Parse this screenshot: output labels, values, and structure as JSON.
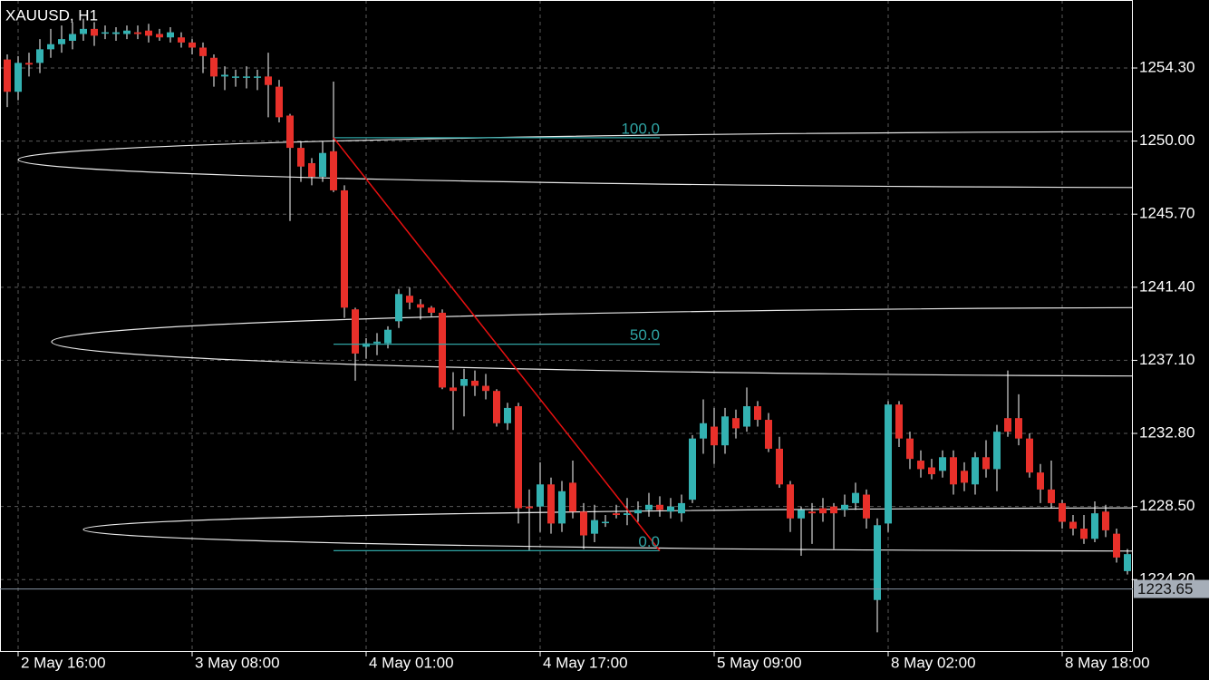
{
  "chart_data": {
    "type": "candlestick",
    "title": "XAUUSD, H1",
    "categories": [
      null,
      "2 May 16:00",
      null,
      null,
      null,
      null,
      null,
      null,
      null,
      null,
      null,
      null,
      null,
      null,
      null,
      null,
      null,
      "3 May 08:00",
      null,
      null,
      null,
      null,
      null,
      null,
      null,
      null,
      null,
      null,
      null,
      null,
      null,
      null,
      null,
      "4 May 01:00",
      null,
      null,
      null,
      null,
      null,
      null,
      null,
      null,
      null,
      null,
      null,
      null,
      null,
      null,
      null,
      "4 May 17:00",
      null,
      null,
      null,
      null,
      null,
      null,
      null,
      null,
      null,
      null,
      null,
      null,
      null,
      null,
      null,
      "5 May 09:00",
      null,
      null,
      null,
      null,
      null,
      null,
      null,
      null,
      null,
      null,
      null,
      null,
      null,
      null,
      null,
      "8 May 02:00",
      null,
      null,
      null,
      null,
      null,
      null,
      null,
      null,
      null,
      null,
      null,
      null,
      null,
      null,
      null,
      "8 May 18:00",
      null,
      null,
      null,
      null,
      null,
      null
    ],
    "open": [
      1254.8,
      1252.9,
      1254.6,
      1254.6,
      1255.4,
      1255.7,
      1255.9,
      1256.3,
      1256.6,
      1256.4,
      1256.3,
      1256.3,
      1256.4,
      1256.5,
      1256.3,
      1256.1,
      1256.1,
      1255.8,
      1255.5,
      1254.9,
      1253.8,
      1253.8,
      1253.8,
      1253.8,
      1253.8,
      1253.2,
      1251.5,
      1249.6,
      1248.7,
      1247.9,
      1249.4,
      1247.1,
      1240.1,
      1237.9,
      1238.1,
      1238.1,
      1239.4,
      1240.9,
      1240.4,
      1240.2,
      1239.9,
      1235.5,
      1235.6,
      1235.9,
      1235.6,
      1235.3,
      1233.4,
      1234.4,
      1228.5,
      1228.5,
      1229.8,
      1227.5,
      1229.9,
      1228.2,
      1226.9,
      1227.6,
      1228.1,
      1228.0,
      1228.1,
      1228.3,
      1228.6,
      1228.2,
      1228.1,
      1228.9,
      1232.5,
      1233.2,
      1232.1,
      1233.7,
      1233.2,
      1234.4,
      1233.6,
      1231.9,
      1229.8,
      1227.8,
      1228.2,
      1228.4,
      1228.5,
      1228.3,
      1228.7,
      1229.2,
      1223.0,
      1227.5,
      1234.5,
      1232.5,
      1231.2,
      1230.8,
      1230.6,
      1231.4,
      1230.6,
      1229.8,
      1231.4,
      1230.7,
      1233.7,
      1233.7,
      1232.5,
      1230.5,
      1229.5,
      1228.7,
      1227.6,
      1227.2,
      1226.6,
      1228.2,
      1226.9,
      1224.7
    ],
    "high": [
      1255.1,
      1255.0,
      1255.2,
      1256.0,
      1256.6,
      1256.8,
      1257.0,
      1257.2,
      1257.0,
      1256.8,
      1256.7,
      1256.8,
      1256.8,
      1256.9,
      1256.6,
      1256.7,
      1256.4,
      1256.0,
      1255.8,
      1255.1,
      1254.4,
      1254.2,
      1254.4,
      1254.2,
      1255.2,
      1253.6,
      1251.6,
      1250.0,
      1249.0,
      1250.0,
      1253.5,
      1247.4,
      1240.2,
      1238.4,
      1238.7,
      1239.1,
      1241.3,
      1241.4,
      1240.7,
      1240.3,
      1240.1,
      1236.4,
      1236.6,
      1236.5,
      1236.3,
      1235.4,
      1234.6,
      1234.6,
      1229.5,
      1231.1,
      1230.2,
      1230.0,
      1231.2,
      1228.7,
      1228.6,
      1228.0,
      1228.6,
      1229.0,
      1228.8,
      1229.3,
      1229.1,
      1229.0,
      1229.2,
      1232.7,
      1234.8,
      1234.3,
      1234.3,
      1234.2,
      1235.5,
      1234.7,
      1234.0,
      1232.6,
      1230.0,
      1228.5,
      1228.7,
      1229.0,
      1228.7,
      1229.2,
      1229.9,
      1229.5,
      1227.8,
      1234.7,
      1234.7,
      1232.9,
      1231.8,
      1231.3,
      1231.8,
      1231.8,
      1231.1,
      1231.7,
      1232.4,
      1233.3,
      1236.5,
      1235.1,
      1232.8,
      1231.0,
      1231.2,
      1228.9,
      1228.0,
      1228.0,
      1228.8,
      1228.6,
      1227.2,
      1226.0
    ],
    "low": [
      1252.0,
      1252.4,
      1253.8,
      1254.0,
      1254.9,
      1255.2,
      1255.4,
      1255.9,
      1255.6,
      1256.0,
      1255.9,
      1256.0,
      1256.0,
      1255.8,
      1255.9,
      1255.8,
      1255.5,
      1255.1,
      1254.0,
      1253.2,
      1253.0,
      1253.2,
      1253.1,
      1253.0,
      1251.4,
      1251.1,
      1245.3,
      1247.6,
      1247.4,
      1247.6,
      1247.0,
      1239.6,
      1235.9,
      1237.2,
      1237.4,
      1237.8,
      1239.0,
      1240.1,
      1239.5,
      1239.7,
      1235.4,
      1233.0,
      1233.8,
      1235.0,
      1234.8,
      1233.2,
      1233.0,
      1227.5,
      1225.9,
      1227.0,
      1226.9,
      1227.0,
      1227.8,
      1226.0,
      1226.4,
      1227.3,
      1227.8,
      1227.4,
      1227.6,
      1227.9,
      1227.9,
      1227.8,
      1227.6,
      1228.7,
      1231.6,
      1231.0,
      1231.6,
      1232.5,
      1232.9,
      1233.2,
      1231.7,
      1229.6,
      1227.0,
      1225.6,
      1226.3,
      1227.6,
      1226.0,
      1227.9,
      1228.3,
      1227.2,
      1221.1,
      1227.0,
      1232.0,
      1230.7,
      1230.2,
      1230.1,
      1230.2,
      1229.2,
      1229.4,
      1229.2,
      1230.2,
      1229.4,
      1232.6,
      1232.1,
      1230.2,
      1228.7,
      1228.4,
      1227.2,
      1226.8,
      1226.3,
      1226.4,
      1226.7,
      1225.2,
      1224.5
    ],
    "close": [
      1252.9,
      1254.6,
      1254.5,
      1255.4,
      1255.7,
      1256.0,
      1256.3,
      1256.6,
      1256.2,
      1256.4,
      1256.4,
      1256.5,
      1256.3,
      1256.2,
      1256.1,
      1256.4,
      1255.8,
      1255.5,
      1255.0,
      1253.8,
      1253.9,
      1253.8,
      1253.8,
      1253.8,
      1253.3,
      1251.4,
      1249.6,
      1248.5,
      1247.9,
      1249.3,
      1247.1,
      1240.2,
      1237.5,
      1238.1,
      1238.2,
      1238.9,
      1241.0,
      1240.5,
      1240.2,
      1239.9,
      1235.5,
      1235.3,
      1236.0,
      1235.6,
      1235.3,
      1233.4,
      1234.3,
      1228.4,
      1228.4,
      1229.8,
      1227.5,
      1229.4,
      1228.2,
      1226.8,
      1227.7,
      1227.6,
      1228.0,
      1228.1,
      1228.3,
      1228.6,
      1228.3,
      1228.5,
      1228.7,
      1232.5,
      1233.4,
      1232.1,
      1233.8,
      1233.1,
      1234.4,
      1233.6,
      1231.9,
      1229.8,
      1227.8,
      1228.3,
      1228.1,
      1228.1,
      1228.1,
      1228.6,
      1229.3,
      1227.8,
      1227.4,
      1234.5,
      1232.5,
      1231.3,
      1230.7,
      1230.4,
      1231.4,
      1229.8,
      1229.9,
      1231.4,
      1230.7,
      1232.9,
      1232.9,
      1232.5,
      1230.5,
      1229.5,
      1228.7,
      1227.6,
      1227.2,
      1226.6,
      1228.1,
      1227.1,
      1225.5,
      1225.7
    ],
    "up_color": "#33b2b2",
    "down_color": "#e8302a",
    "ylim": [
      1220.0,
      1258.3
    ],
    "yticks": [
      {
        "value": 1224.2,
        "label": "1224.20"
      },
      {
        "value": 1228.5,
        "label": "1228.50"
      },
      {
        "value": 1232.8,
        "label": "1232.80"
      },
      {
        "value": 1237.1,
        "label": "1237.10"
      },
      {
        "value": 1241.4,
        "label": "1241.40"
      },
      {
        "value": 1245.7,
        "label": "1245.70"
      },
      {
        "value": 1250.0,
        "label": "1250.00"
      },
      {
        "value": 1254.3,
        "label": "1254.30"
      }
    ],
    "grid": true,
    "current_price": {
      "value": 1223.65,
      "label": "1223.65"
    },
    "fibonacci": {
      "start_index": 30,
      "end_index": 60,
      "color": "#2fa3a3",
      "line_color": "#e81010",
      "levels": [
        {
          "value": 100,
          "label": "100.0",
          "price": 1250.2
        },
        {
          "value": 50,
          "label": "50.0",
          "price": 1238.05
        },
        {
          "value": 0,
          "label": "0.0",
          "price": 1225.9
        }
      ]
    }
  }
}
